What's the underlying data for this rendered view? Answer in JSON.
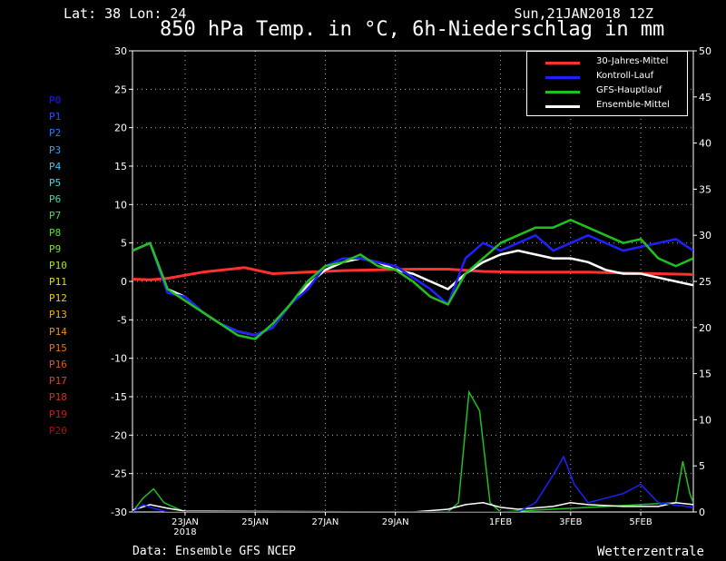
{
  "header": {
    "location": "Lat: 38 Lon: 24",
    "run": "Sun,21JAN2018 12Z",
    "title": "850 hPa Temp. in °C, 6h-Niederschlag in mm"
  },
  "footer": {
    "source": "Data: Ensemble GFS NCEP",
    "brand": "Wetterzentrale"
  },
  "members": [
    {
      "label": "P0",
      "color": "#1a1aff"
    },
    {
      "label": "P1",
      "color": "#2050ff"
    },
    {
      "label": "P2",
      "color": "#2a78ff"
    },
    {
      "label": "P3",
      "color": "#30a0ff"
    },
    {
      "label": "P4",
      "color": "#30c8ff"
    },
    {
      "label": "P5",
      "color": "#30e0e0"
    },
    {
      "label": "P6",
      "color": "#30e0a0"
    },
    {
      "label": "P7",
      "color": "#40e060"
    },
    {
      "label": "P8",
      "color": "#50e030"
    },
    {
      "label": "P9",
      "color": "#80e020"
    },
    {
      "label": "P10",
      "color": "#b0e010"
    },
    {
      "label": "P11",
      "color": "#e0e000"
    },
    {
      "label": "P12",
      "color": "#f0d000"
    },
    {
      "label": "P13",
      "color": "#f0b000"
    },
    {
      "label": "P14",
      "color": "#f09000"
    },
    {
      "label": "P15",
      "color": "#f07000"
    },
    {
      "label": "P16",
      "color": "#f05020"
    },
    {
      "label": "P17",
      "color": "#e04020"
    },
    {
      "label": "P18",
      "color": "#d03020"
    },
    {
      "label": "P19",
      "color": "#c02020"
    },
    {
      "label": "P20",
      "color": "#a01010"
    }
  ],
  "legend": [
    {
      "label": "30-Jahres-Mittel",
      "color": "#ff3030"
    },
    {
      "label": "Kontroll-Lauf",
      "color": "#2020ff"
    },
    {
      "label": "GFS-Hauptlauf",
      "color": "#20c020"
    },
    {
      "label": "Ensemble-Mittel",
      "color": "#ffffff"
    }
  ],
  "chart_data": {
    "type": "line",
    "x_unit": "days after 21JAN2018 12Z",
    "xlim": [
      0,
      16
    ],
    "ylim_left": [
      -30,
      30
    ],
    "ylim_right": [
      0,
      50
    ],
    "left_ticks": [
      30,
      25,
      20,
      15,
      10,
      5,
      0,
      -5,
      -10,
      -15,
      -20,
      -25,
      -30
    ],
    "right_ticks": [
      50,
      45,
      40,
      35,
      30,
      25,
      20,
      15,
      10,
      5,
      0
    ],
    "x_ticks": [
      {
        "x": 1.5,
        "label": "23JAN",
        "sub": "2018"
      },
      {
        "x": 3.5,
        "label": "25JAN",
        "sub": ""
      },
      {
        "x": 5.5,
        "label": "27JAN",
        "sub": ""
      },
      {
        "x": 7.5,
        "label": "29JAN",
        "sub": ""
      },
      {
        "x": 10.5,
        "label": "1FEB",
        "sub": ""
      },
      {
        "x": 12.5,
        "label": "3FEB",
        "sub": ""
      },
      {
        "x": 14.5,
        "label": "5FEB",
        "sub": ""
      }
    ],
    "series": [
      {
        "name": "30-Jahres-Mittel",
        "color": "#ff3030",
        "width": 3,
        "points": [
          [
            0,
            0.3
          ],
          [
            0.5,
            0.2
          ],
          [
            1,
            0.4
          ],
          [
            2,
            1.2
          ],
          [
            3.2,
            1.8
          ],
          [
            4,
            1.0
          ],
          [
            5,
            1.2
          ],
          [
            6,
            1.4
          ],
          [
            7,
            1.5
          ],
          [
            8,
            1.6
          ],
          [
            9,
            1.6
          ],
          [
            10,
            1.3
          ],
          [
            11,
            1.2
          ],
          [
            12,
            1.2
          ],
          [
            13,
            1.2
          ],
          [
            14,
            1.1
          ],
          [
            15,
            1.0
          ],
          [
            16,
            0.9
          ]
        ]
      },
      {
        "name": "Ensemble-Mittel",
        "color": "#ffffff",
        "width": 2.5,
        "points": [
          [
            0,
            4
          ],
          [
            0.5,
            5
          ],
          [
            1,
            -1
          ],
          [
            1.5,
            -2
          ],
          [
            2,
            -4
          ],
          [
            2.5,
            -5.5
          ],
          [
            3,
            -6.5
          ],
          [
            3.5,
            -7
          ],
          [
            4,
            -6
          ],
          [
            4.5,
            -3
          ],
          [
            5,
            -0.5
          ],
          [
            5.5,
            1.5
          ],
          [
            6,
            2.5
          ],
          [
            6.5,
            3
          ],
          [
            7,
            2.5
          ],
          [
            7.5,
            1.5
          ],
          [
            8,
            1
          ],
          [
            8.5,
            0
          ],
          [
            9,
            -1
          ],
          [
            9.5,
            1
          ],
          [
            10,
            2.5
          ],
          [
            10.5,
            3.5
          ],
          [
            11,
            4
          ],
          [
            11.5,
            3.5
          ],
          [
            12,
            3
          ],
          [
            12.5,
            3
          ],
          [
            13,
            2.5
          ],
          [
            13.5,
            1.5
          ],
          [
            14,
            1
          ],
          [
            14.5,
            1
          ],
          [
            15,
            0.5
          ],
          [
            15.5,
            0
          ],
          [
            16,
            -0.5
          ]
        ]
      },
      {
        "name": "Kontroll-Lauf",
        "color": "#2020ff",
        "width": 2.5,
        "points": [
          [
            0,
            4
          ],
          [
            0.5,
            5
          ],
          [
            1,
            -1.5
          ],
          [
            1.5,
            -2
          ],
          [
            2,
            -4
          ],
          [
            2.5,
            -5.5
          ],
          [
            3,
            -6.5
          ],
          [
            3.5,
            -7
          ],
          [
            4,
            -6
          ],
          [
            4.5,
            -3
          ],
          [
            5,
            -1
          ],
          [
            5.5,
            2
          ],
          [
            6,
            3
          ],
          [
            6.5,
            3
          ],
          [
            7,
            2.5
          ],
          [
            7.5,
            2
          ],
          [
            8,
            0.5
          ],
          [
            8.5,
            -1
          ],
          [
            9,
            -3
          ],
          [
            9.5,
            3
          ],
          [
            10,
            5
          ],
          [
            10.5,
            4
          ],
          [
            11,
            5
          ],
          [
            11.5,
            6
          ],
          [
            12,
            4
          ],
          [
            12.5,
            5
          ],
          [
            13,
            6
          ],
          [
            13.5,
            5
          ],
          [
            14,
            4
          ],
          [
            14.5,
            4.5
          ],
          [
            15,
            5
          ],
          [
            15.5,
            5.5
          ],
          [
            16,
            4
          ]
        ]
      },
      {
        "name": "GFS-Hauptlauf",
        "color": "#20c020",
        "width": 2.5,
        "points": [
          [
            0,
            4
          ],
          [
            0.5,
            5
          ],
          [
            1,
            -1
          ],
          [
            1.5,
            -2.5
          ],
          [
            2,
            -4
          ],
          [
            2.5,
            -5.5
          ],
          [
            3,
            -7
          ],
          [
            3.5,
            -7.5
          ],
          [
            4,
            -5.5
          ],
          [
            4.5,
            -3
          ],
          [
            5,
            0
          ],
          [
            5.5,
            2
          ],
          [
            6,
            2.5
          ],
          [
            6.5,
            3.5
          ],
          [
            7,
            2
          ],
          [
            7.5,
            1.5
          ],
          [
            8,
            0
          ],
          [
            8.5,
            -2
          ],
          [
            9,
            -3
          ],
          [
            9.5,
            1
          ],
          [
            10,
            3
          ],
          [
            10.5,
            5
          ],
          [
            11,
            6
          ],
          [
            11.5,
            7
          ],
          [
            12,
            7
          ],
          [
            12.5,
            8
          ],
          [
            13,
            7
          ],
          [
            13.5,
            6
          ],
          [
            14,
            5
          ],
          [
            14.5,
            5.5
          ],
          [
            15,
            3
          ],
          [
            15.5,
            2
          ],
          [
            16,
            3
          ]
        ]
      }
    ],
    "precip_series": [
      {
        "name": "GFS-Hauptlauf",
        "color": "#20c020",
        "points": [
          [
            0,
            0
          ],
          [
            0.3,
            1.5
          ],
          [
            0.6,
            2.5
          ],
          [
            0.9,
            1
          ],
          [
            1.2,
            0.5
          ],
          [
            1.5,
            0
          ],
          [
            9,
            0
          ],
          [
            9.3,
            1
          ],
          [
            9.6,
            13
          ],
          [
            9.9,
            11
          ],
          [
            10.2,
            1
          ],
          [
            10.5,
            0
          ],
          [
            15.5,
            1
          ],
          [
            15.7,
            5.5
          ],
          [
            15.9,
            2
          ],
          [
            16,
            1
          ]
        ]
      },
      {
        "name": "Ensemble-Mittel",
        "color": "#ffffff",
        "points": [
          [
            0,
            0.2
          ],
          [
            0.5,
            0.8
          ],
          [
            1,
            0.4
          ],
          [
            1.5,
            0.1
          ],
          [
            8,
            0
          ],
          [
            9,
            0.3
          ],
          [
            9.5,
            0.8
          ],
          [
            10,
            1
          ],
          [
            10.5,
            0.5
          ],
          [
            11,
            0.3
          ],
          [
            12,
            0.6
          ],
          [
            12.5,
            1
          ],
          [
            13,
            0.8
          ],
          [
            13.5,
            0.7
          ],
          [
            14,
            0.6
          ],
          [
            15,
            0.6
          ],
          [
            15.5,
            1
          ],
          [
            16,
            0.8
          ]
        ]
      },
      {
        "name": "Kontroll-Lauf",
        "color": "#2020ff",
        "points": [
          [
            0,
            0
          ],
          [
            0.3,
            0.8
          ],
          [
            0.6,
            0.4
          ],
          [
            1,
            0
          ],
          [
            11,
            0
          ],
          [
            11.5,
            1
          ],
          [
            12,
            4
          ],
          [
            12.3,
            6
          ],
          [
            12.6,
            3
          ],
          [
            13,
            1
          ],
          [
            14,
            2
          ],
          [
            14.5,
            3
          ],
          [
            15,
            1
          ],
          [
            16,
            0.5
          ]
        ]
      }
    ]
  }
}
